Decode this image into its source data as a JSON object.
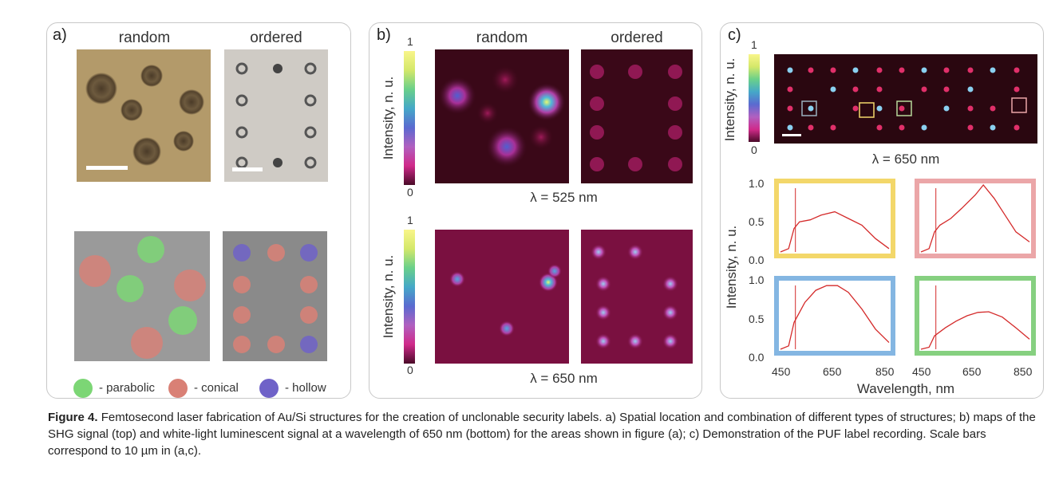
{
  "panel_a": {
    "label": "a)",
    "header_random": "random",
    "header_ordered": "ordered",
    "legend": [
      {
        "label": "- parabolic",
        "color": "#7cd675"
      },
      {
        "label": "- conical",
        "color": "#d98075"
      },
      {
        "label": "- hollow",
        "color": "#6f62c8"
      }
    ]
  },
  "panel_b": {
    "label": "b)",
    "header_random": "random",
    "header_ordered": "ordered",
    "colorbar_top": "1",
    "colorbar_bottom": "0",
    "colorbar_label": "Intensity, n. u.",
    "lambda_top": "λ = 525 nm",
    "lambda_bottom": "λ = 650 nm"
  },
  "panel_c": {
    "label": "c)",
    "colorbar_top": "1",
    "colorbar_bottom": "0",
    "colorbar_label": "Intensity, n. u.",
    "lambda": "λ = 650 nm",
    "y_label": "Intensity, n. u.",
    "x_label": "Wavelength, nm",
    "y_ticks": [
      "1.0",
      "0.5",
      "0.0"
    ],
    "x_ticks": [
      "450",
      "650",
      "850"
    ]
  },
  "chart_data": [
    {
      "type": "line",
      "frame_color": "#f3d76a",
      "x": [
        450,
        480,
        500,
        520,
        560,
        600,
        650,
        700,
        750,
        800,
        850
      ],
      "y": [
        0.0,
        0.05,
        0.35,
        0.45,
        0.48,
        0.55,
        0.6,
        0.5,
        0.4,
        0.2,
        0.05
      ]
    },
    {
      "type": "line",
      "frame_color": "#eba6a8",
      "x": [
        450,
        480,
        500,
        520,
        560,
        600,
        650,
        680,
        720,
        760,
        800,
        850
      ],
      "y": [
        0.0,
        0.05,
        0.3,
        0.4,
        0.5,
        0.65,
        0.85,
        1.0,
        0.8,
        0.55,
        0.3,
        0.15
      ]
    },
    {
      "type": "line",
      "frame_color": "#84b6e2",
      "x": [
        450,
        480,
        500,
        540,
        580,
        620,
        660,
        700,
        750,
        800,
        850
      ],
      "y": [
        0.0,
        0.05,
        0.4,
        0.7,
        0.88,
        0.95,
        0.95,
        0.85,
        0.6,
        0.3,
        0.1
      ]
    },
    {
      "type": "line",
      "frame_color": "#86d080",
      "x": [
        450,
        480,
        500,
        540,
        580,
        620,
        660,
        700,
        750,
        800,
        850
      ],
      "y": [
        0.0,
        0.03,
        0.2,
        0.32,
        0.42,
        0.5,
        0.55,
        0.56,
        0.48,
        0.32,
        0.15
      ]
    }
  ],
  "caption": {
    "lead": "Figure 4.",
    "text": "Femtosecond laser fabrication of Au/Si structures for the creation of unclonable security labels. a) Spatial location and combination of different types of structures; b) maps of the SHG signal (top) and white-light luminescent signal at a wavelength of 650 nm (bottom) for the areas shown in figure (a); c) Demonstration of the PUF label recording. Scale bars correspond to 10 µm in (a,c)."
  }
}
